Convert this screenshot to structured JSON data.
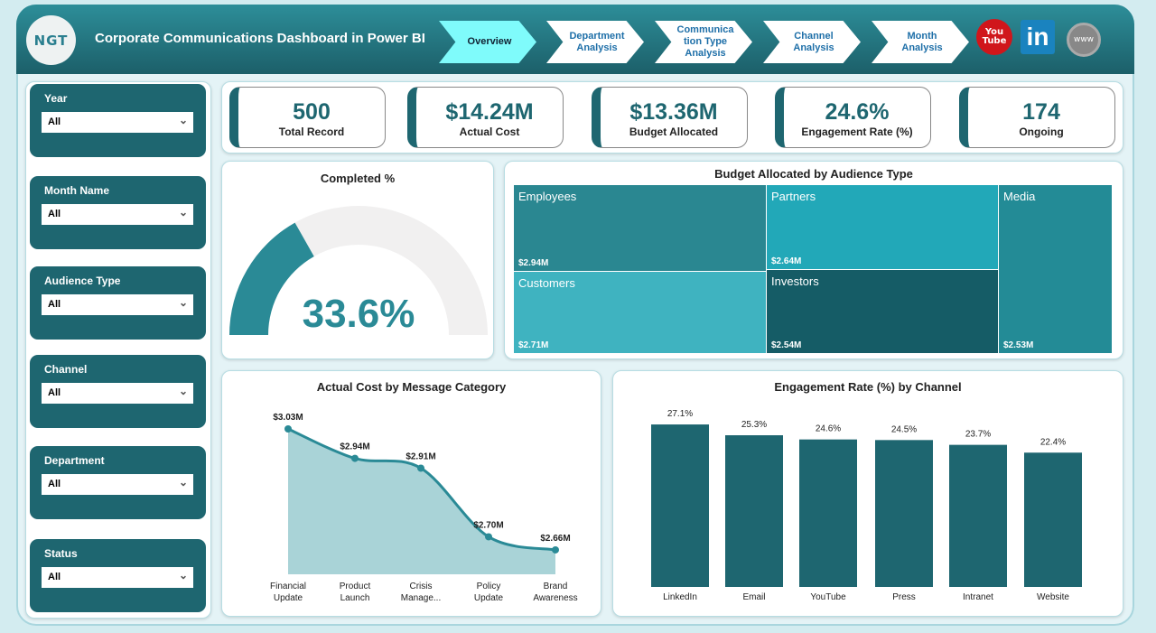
{
  "header": {
    "title": "Corporate Communications Dashboard in Power BI",
    "logo_text": "NGT",
    "nav": [
      {
        "label": "Overview",
        "active": true
      },
      {
        "label": "Department Analysis"
      },
      {
        "label": "Communica tion Type Analysis"
      },
      {
        "label": "Channel Analysis"
      },
      {
        "label": "Month Analysis"
      }
    ],
    "social": {
      "youtube": "You Tube",
      "linkedin": "in",
      "web": "www"
    }
  },
  "filters": [
    {
      "label": "Year",
      "value": "All"
    },
    {
      "label": "Month Name",
      "value": "All"
    },
    {
      "label": "Audience Type",
      "value": "All"
    },
    {
      "label": "Channel",
      "value": "All"
    },
    {
      "label": "Department",
      "value": "All"
    },
    {
      "label": "Status",
      "value": "All"
    }
  ],
  "kpis": [
    {
      "value": "500",
      "label": "Total Record"
    },
    {
      "value": "$14.24M",
      "label": "Actual Cost"
    },
    {
      "value": "$13.36M",
      "label": "Budget Allocated"
    },
    {
      "value": "24.6%",
      "label": "Engagement Rate (%)"
    },
    {
      "value": "174",
      "label": "Ongoing"
    }
  ],
  "colors": {
    "primary": "#1e6670",
    "accent": "#2a8a96",
    "nav_active": "#7ffbfb"
  },
  "chart_data": [
    {
      "type": "gauge",
      "title": "Completed %",
      "value": 33.6,
      "label": "33.6%",
      "min": 0,
      "max": 100
    },
    {
      "type": "treemap",
      "title": "Budget Allocated by Audience Type",
      "categories": [
        "Employees",
        "Partners",
        "Media",
        "Customers",
        "Investors"
      ],
      "values": [
        2.94,
        2.64,
        2.53,
        2.71,
        2.54
      ],
      "labels": [
        "$2.94M",
        "$2.64M",
        "$2.53M",
        "$2.71M",
        "$2.54M"
      ]
    },
    {
      "type": "area",
      "title": "Actual Cost by Message Category",
      "categories": [
        "Financial Update",
        "Product Launch",
        "Crisis Manage...",
        "Policy Update",
        "Brand Awareness"
      ],
      "values": [
        3.03,
        2.94,
        2.91,
        2.7,
        2.66
      ],
      "labels": [
        "$3.03M",
        "$2.94M",
        "$2.91M",
        "$2.70M",
        "$2.66M"
      ]
    },
    {
      "type": "bar",
      "title": "Engagement Rate (%) by Channel",
      "categories": [
        "LinkedIn",
        "Email",
        "YouTube",
        "Press",
        "Intranet",
        "Website"
      ],
      "values": [
        27.1,
        25.3,
        24.6,
        24.5,
        23.7,
        22.4
      ],
      "labels": [
        "27.1%",
        "25.3%",
        "24.6%",
        "24.5%",
        "23.7%",
        "22.4%"
      ]
    }
  ]
}
